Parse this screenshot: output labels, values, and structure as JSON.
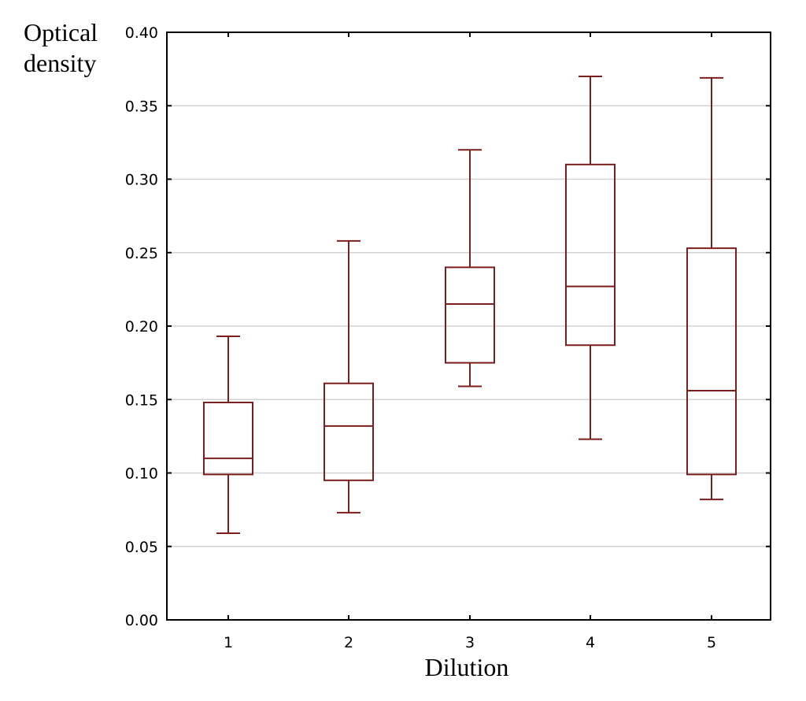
{
  "colors": {
    "box": "#7a1e1e",
    "grid": "#d3d3d3",
    "axis": "#000000"
  },
  "chart_data": {
    "type": "boxplot",
    "title": "",
    "xlabel": "Dilution",
    "ylabel_lines": [
      "Optical",
      "density"
    ],
    "ylim": [
      0.0,
      0.4
    ],
    "yticks": [
      "0.00",
      "0.05",
      "0.10",
      "0.15",
      "0.20",
      "0.25",
      "0.30",
      "0.35",
      "0.40"
    ],
    "grid": true,
    "categories": [
      "1",
      "2",
      "3",
      "4",
      "5"
    ],
    "boxes": [
      {
        "category": "1",
        "min": 0.059,
        "q1": 0.099,
        "median": 0.11,
        "q3": 0.148,
        "max": 0.193
      },
      {
        "category": "2",
        "min": 0.073,
        "q1": 0.095,
        "median": 0.132,
        "q3": 0.161,
        "max": 0.258
      },
      {
        "category": "3",
        "min": 0.159,
        "q1": 0.175,
        "median": 0.215,
        "q3": 0.24,
        "max": 0.32
      },
      {
        "category": "4",
        "min": 0.123,
        "q1": 0.187,
        "median": 0.227,
        "q3": 0.31,
        "max": 0.37
      },
      {
        "category": "5",
        "min": 0.082,
        "q1": 0.099,
        "median": 0.156,
        "q3": 0.253,
        "max": 0.369
      }
    ]
  }
}
